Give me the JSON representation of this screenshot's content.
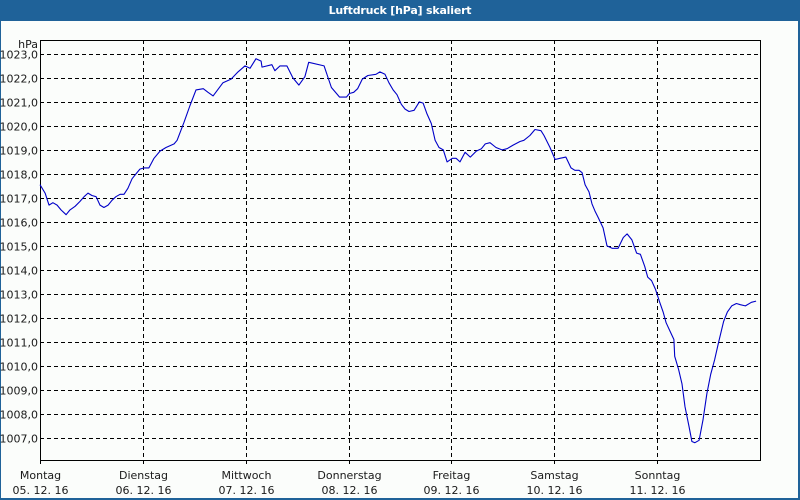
{
  "window": {
    "title": "Luftdruck [hPa] skaliert",
    "titlebar_color": "#1f6299",
    "background": "#fbfdfb"
  },
  "chart_data": {
    "type": "line",
    "title": "Luftdruck [hPa] skaliert",
    "xlabel": "",
    "ylabel": "hPa",
    "ylim": [
      1006.08,
      1023.58
    ],
    "xlim_hours": [
      0,
      168
    ],
    "grid": true,
    "grid_style": "dashed",
    "y_ticks": [
      "1023,0",
      "1022,0",
      "1021,0",
      "1020,0",
      "1019,0",
      "1018,0",
      "1017,0",
      "1016,0",
      "1015,0",
      "1014,0",
      "1013,0",
      "1012,0",
      "1011,0",
      "1010,0",
      "1009,0",
      "1008,0",
      "1007,0"
    ],
    "y_tick_values": [
      1023,
      1022,
      1021,
      1020,
      1019,
      1018,
      1017,
      1016,
      1015,
      1014,
      1013,
      1012,
      1011,
      1010,
      1009,
      1008,
      1007
    ],
    "x_ticks": [
      {
        "day": "Montag",
        "date": "05.12.16",
        "hour": 0
      },
      {
        "day": "Dienstag",
        "date": "06.12.16",
        "hour": 24
      },
      {
        "day": "Mittwoch",
        "date": "07.12.16",
        "hour": 48
      },
      {
        "day": "Donnerstag",
        "date": "08.12.16",
        "hour": 72
      },
      {
        "day": "Freitag",
        "date": "09.12.16",
        "hour": 96
      },
      {
        "day": "Samstag",
        "date": "10.12.16",
        "hour": 120
      },
      {
        "day": "Sonntag",
        "date": "11.12.16",
        "hour": 144
      }
    ],
    "series": [
      {
        "name": "Luftdruck",
        "color": "#0000c8",
        "x_hours": [
          0,
          1.2,
          2.1,
          3.0,
          4.0,
          4.9,
          6.1,
          7.0,
          8.2,
          9.3,
          10.3,
          11.2,
          12.1,
          13.1,
          14.0,
          14.9,
          15.9,
          16.8,
          17.7,
          18.7,
          19.6,
          20.5,
          21.5,
          22.4,
          23.3,
          24.3,
          25.4,
          26.6,
          28.0,
          29.4,
          31.3,
          32.0,
          33.6,
          35.0,
          36.4,
          38.1,
          39.2,
          40.4,
          42.7,
          44.6,
          46.2,
          47.8,
          49.0,
          50.4,
          51.6,
          51.8,
          54.1,
          54.8,
          56.0,
          57.6,
          59.0,
          60.4,
          61.8,
          62.7,
          66.3,
          68.0,
          69.9,
          71.5,
          72.2,
          73.2,
          74.1,
          75.2,
          76.5,
          78.4,
          79.3,
          80.5,
          81.4,
          82.4,
          83.3,
          84.3,
          85.2,
          86.1,
          87.3,
          88.5,
          89.4,
          90.3,
          91.3,
          92.2,
          93.1,
          94.1,
          95.0,
          96.2,
          97.1,
          98.0,
          99.2,
          100.4,
          101.8,
          103.0,
          103.9,
          105.0,
          106.4,
          107.8,
          109.0,
          110.4,
          112.0,
          112.9,
          114.3,
          115.5,
          116.9,
          117.6,
          119.0,
          120.2,
          121.3,
          122.7,
          123.9,
          124.8,
          125.8,
          126.5,
          127.2,
          128.1,
          128.8,
          129.5,
          130.2,
          131.4,
          132.3,
          133.5,
          134.9,
          136.1,
          137.0,
          138.1,
          139.2,
          140.1,
          141.1,
          141.8,
          142.7,
          143.6,
          144.5,
          145.4,
          146.1,
          147.0,
          147.9,
          148.1,
          149.0,
          149.8,
          150.5,
          151.4,
          152.1,
          152.8,
          153.8,
          154.7,
          155.6,
          156.5,
          157.4,
          158.3,
          159.5,
          160.4,
          161.4,
          162.5,
          163.4,
          164.6,
          166.0,
          167.1
        ],
        "values": [
          1017.55,
          1017.2,
          1016.7,
          1016.8,
          1016.7,
          1016.5,
          1016.3,
          1016.5,
          1016.65,
          1016.85,
          1017.05,
          1017.2,
          1017.1,
          1017.05,
          1016.7,
          1016.6,
          1016.7,
          1016.9,
          1017.05,
          1017.15,
          1017.15,
          1017.4,
          1017.8,
          1018.0,
          1018.2,
          1018.25,
          1018.25,
          1018.65,
          1018.95,
          1019.1,
          1019.25,
          1019.4,
          1020.15,
          1020.85,
          1021.5,
          1021.55,
          1021.4,
          1021.25,
          1021.8,
          1021.95,
          1022.25,
          1022.5,
          1022.4,
          1022.8,
          1022.7,
          1022.45,
          1022.55,
          1022.3,
          1022.5,
          1022.5,
          1022.0,
          1021.7,
          1022.05,
          1022.65,
          1022.5,
          1021.6,
          1021.2,
          1021.2,
          1021.35,
          1021.4,
          1021.55,
          1021.95,
          1022.1,
          1022.15,
          1022.25,
          1022.15,
          1021.8,
          1021.5,
          1021.3,
          1020.9,
          1020.7,
          1020.6,
          1020.65,
          1021.0,
          1020.95,
          1020.5,
          1020.1,
          1019.4,
          1019.1,
          1019.0,
          1018.5,
          1018.65,
          1018.65,
          1018.5,
          1018.9,
          1018.7,
          1018.95,
          1019.05,
          1019.25,
          1019.3,
          1019.1,
          1019.0,
          1019.05,
          1019.2,
          1019.35,
          1019.4,
          1019.6,
          1019.85,
          1019.8,
          1019.6,
          1019.1,
          1018.6,
          1018.65,
          1018.7,
          1018.25,
          1018.15,
          1018.15,
          1018.05,
          1017.55,
          1017.25,
          1016.75,
          1016.45,
          1016.2,
          1015.75,
          1015.0,
          1014.9,
          1014.9,
          1015.35,
          1015.5,
          1015.25,
          1014.7,
          1014.65,
          1014.15,
          1013.7,
          1013.55,
          1013.2,
          1012.7,
          1012.25,
          1011.8,
          1011.45,
          1011.1,
          1010.4,
          1009.85,
          1009.25,
          1008.3,
          1007.5,
          1006.85,
          1006.8,
          1006.9,
          1007.75,
          1008.85,
          1009.65,
          1010.25,
          1010.95,
          1011.85,
          1012.25,
          1012.5,
          1012.6,
          1012.55,
          1012.5,
          1012.65,
          1012.7,
          1012.75,
          1012.9,
          1013.1,
          1013.15,
          1013.25
        ]
      }
    ]
  }
}
